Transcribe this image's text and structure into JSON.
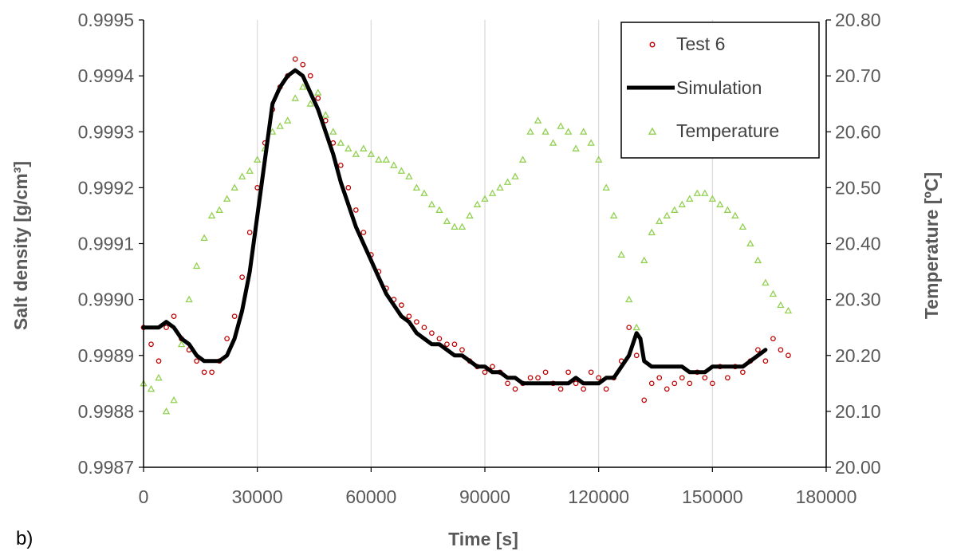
{
  "panel_label": "b)",
  "chart_data": {
    "type": "scatter",
    "xlabel": "Time [s]",
    "ylabel": "Salt density [g/cm³]",
    "ylabel_right": "Temperature [ºC]",
    "xlim": [
      0,
      180000
    ],
    "ylim": [
      0.9987,
      0.9995
    ],
    "ylim_right": [
      20.0,
      20.8
    ],
    "grid": "vertical",
    "legend_position": "top-right",
    "x_ticks": [
      "0",
      "30000",
      "60000",
      "90000",
      "120000",
      "150000",
      "180000"
    ],
    "y_ticks": [
      "0.9987",
      "0.9988",
      "0.9989",
      "0.9990",
      "0.9991",
      "0.9992",
      "0.9993",
      "0.9994",
      "0.9995"
    ],
    "y_right_ticks": [
      "20.00",
      "20.10",
      "20.20",
      "20.30",
      "20.40",
      "20.50",
      "20.60",
      "20.70",
      "20.80"
    ],
    "colors": {
      "test": "#c00000",
      "simulation": "#000000",
      "temperature": "#92d050"
    },
    "series": [
      {
        "name": "Test 6",
        "marker": "circle",
        "axis": "left",
        "x": [
          0,
          2000,
          4000,
          6000,
          8000,
          10000,
          12000,
          14000,
          16000,
          18000,
          20000,
          22000,
          24000,
          26000,
          28000,
          30000,
          32000,
          34000,
          36000,
          38000,
          40000,
          42000,
          44000,
          46000,
          48000,
          50000,
          52000,
          54000,
          56000,
          58000,
          60000,
          62000,
          64000,
          66000,
          68000,
          70000,
          72000,
          74000,
          76000,
          78000,
          80000,
          82000,
          84000,
          86000,
          88000,
          90000,
          92000,
          94000,
          96000,
          98000,
          100000,
          102000,
          104000,
          106000,
          108000,
          110000,
          112000,
          114000,
          116000,
          118000,
          120000,
          122000,
          124000,
          126000,
          128000,
          130000,
          132000,
          134000,
          136000,
          138000,
          140000,
          142000,
          144000,
          146000,
          148000,
          150000,
          152000,
          154000,
          156000,
          158000,
          160000,
          162000,
          164000,
          166000,
          168000,
          170000
        ],
        "y": [
          0.99895,
          0.99892,
          0.99889,
          0.99895,
          0.99897,
          0.99893,
          0.99891,
          0.99889,
          0.99887,
          0.99887,
          0.99889,
          0.99893,
          0.99897,
          0.99904,
          0.99912,
          0.9992,
          0.99928,
          0.99934,
          0.99938,
          0.9994,
          0.99943,
          0.99942,
          0.9994,
          0.99936,
          0.99932,
          0.99928,
          0.99924,
          0.9992,
          0.99916,
          0.99912,
          0.99908,
          0.99905,
          0.99902,
          0.999,
          0.99899,
          0.99897,
          0.99896,
          0.99895,
          0.99894,
          0.99893,
          0.99892,
          0.99892,
          0.99891,
          0.99889,
          0.99888,
          0.99887,
          0.99888,
          0.99887,
          0.99885,
          0.99884,
          0.99885,
          0.99886,
          0.99886,
          0.99887,
          0.99885,
          0.99884,
          0.99887,
          0.99885,
          0.99884,
          0.99887,
          0.99886,
          0.99884,
          0.99886,
          0.99889,
          0.99895,
          0.9989,
          0.99882,
          0.99885,
          0.99886,
          0.99884,
          0.99885,
          0.99886,
          0.99885,
          0.99887,
          0.99886,
          0.99885,
          0.99888,
          0.99886,
          0.99888,
          0.99887,
          0.99889,
          0.99891,
          0.99889,
          0.99893,
          0.99891,
          0.9989
        ]
      },
      {
        "name": "Simulation",
        "marker": "line",
        "axis": "left",
        "x": [
          0,
          2000,
          4000,
          6000,
          8000,
          10000,
          12000,
          14000,
          16000,
          18000,
          20000,
          22000,
          24000,
          26000,
          28000,
          30000,
          32000,
          34000,
          36000,
          38000,
          40000,
          42000,
          44000,
          46000,
          48000,
          50000,
          52000,
          54000,
          56000,
          58000,
          60000,
          62000,
          64000,
          66000,
          68000,
          70000,
          72000,
          74000,
          76000,
          78000,
          80000,
          82000,
          84000,
          86000,
          88000,
          90000,
          92000,
          94000,
          96000,
          98000,
          100000,
          102000,
          104000,
          106000,
          108000,
          110000,
          112000,
          114000,
          116000,
          118000,
          120000,
          122000,
          124000,
          126000,
          128000,
          130000,
          131000,
          132000,
          134000,
          136000,
          138000,
          140000,
          142000,
          144000,
          146000,
          148000,
          150000,
          152000,
          154000,
          156000,
          158000,
          160000,
          162000,
          164000
        ],
        "y": [
          0.99895,
          0.99895,
          0.99895,
          0.99896,
          0.99895,
          0.99893,
          0.99892,
          0.9989,
          0.99889,
          0.99889,
          0.99889,
          0.9989,
          0.99893,
          0.99898,
          0.99905,
          0.99915,
          0.99925,
          0.99935,
          0.99938,
          0.9994,
          0.99941,
          0.9994,
          0.99937,
          0.99934,
          0.9993,
          0.99926,
          0.99921,
          0.99917,
          0.99913,
          0.9991,
          0.99907,
          0.99904,
          0.99901,
          0.99899,
          0.99897,
          0.99896,
          0.99894,
          0.99893,
          0.99892,
          0.99892,
          0.99891,
          0.9989,
          0.9989,
          0.99889,
          0.99888,
          0.99888,
          0.99887,
          0.99887,
          0.99886,
          0.99886,
          0.99885,
          0.99885,
          0.99885,
          0.99885,
          0.99885,
          0.99885,
          0.99885,
          0.99886,
          0.99885,
          0.99885,
          0.99885,
          0.99886,
          0.99886,
          0.99888,
          0.9989,
          0.99894,
          0.99893,
          0.99889,
          0.99888,
          0.99888,
          0.99888,
          0.99888,
          0.99888,
          0.99887,
          0.99887,
          0.99887,
          0.99888,
          0.99888,
          0.99888,
          0.99888,
          0.99888,
          0.99889,
          0.9989,
          0.99891
        ]
      },
      {
        "name": "Temperature",
        "marker": "triangle",
        "axis": "right",
        "x": [
          0,
          2000,
          4000,
          6000,
          8000,
          10000,
          12000,
          14000,
          16000,
          18000,
          20000,
          22000,
          24000,
          26000,
          28000,
          30000,
          32000,
          34000,
          36000,
          38000,
          40000,
          42000,
          44000,
          46000,
          48000,
          50000,
          52000,
          54000,
          56000,
          58000,
          60000,
          62000,
          64000,
          66000,
          68000,
          70000,
          72000,
          74000,
          76000,
          78000,
          80000,
          82000,
          84000,
          86000,
          88000,
          90000,
          92000,
          94000,
          96000,
          98000,
          100000,
          102000,
          104000,
          106000,
          108000,
          110000,
          112000,
          114000,
          116000,
          118000,
          120000,
          122000,
          124000,
          126000,
          128000,
          130000,
          132000,
          134000,
          136000,
          138000,
          140000,
          142000,
          144000,
          146000,
          148000,
          150000,
          152000,
          154000,
          156000,
          158000,
          160000,
          162000,
          164000,
          166000,
          168000,
          170000
        ],
        "y": [
          20.15,
          20.14,
          20.16,
          20.1,
          20.12,
          20.22,
          20.3,
          20.36,
          20.41,
          20.45,
          20.46,
          20.48,
          20.5,
          20.52,
          20.53,
          20.55,
          20.57,
          20.6,
          20.61,
          20.62,
          20.66,
          20.68,
          20.65,
          20.67,
          20.63,
          20.6,
          20.58,
          20.57,
          20.56,
          20.57,
          20.56,
          20.55,
          20.55,
          20.54,
          20.53,
          20.52,
          20.5,
          20.49,
          20.47,
          20.46,
          20.44,
          20.43,
          20.43,
          20.45,
          20.47,
          20.48,
          20.49,
          20.5,
          20.51,
          20.52,
          20.55,
          20.6,
          20.62,
          20.6,
          20.58,
          20.61,
          20.6,
          20.57,
          20.6,
          20.58,
          20.55,
          20.5,
          20.45,
          20.38,
          20.3,
          20.25,
          20.37,
          20.42,
          20.44,
          20.45,
          20.46,
          20.47,
          20.48,
          20.49,
          20.49,
          20.48,
          20.47,
          20.46,
          20.45,
          20.43,
          20.4,
          20.37,
          20.33,
          20.31,
          20.29,
          20.28
        ]
      }
    ]
  }
}
